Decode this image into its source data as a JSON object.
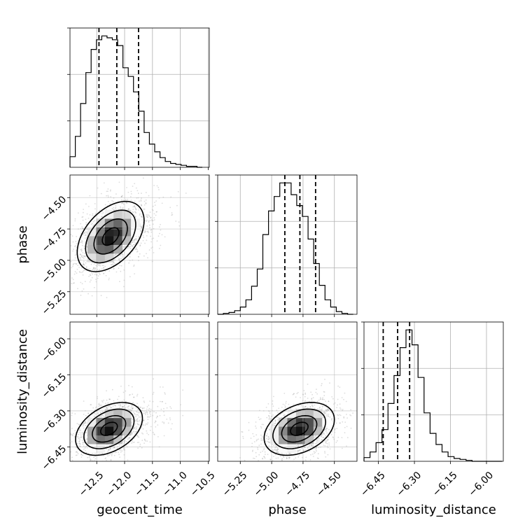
{
  "figure": {
    "type": "corner plot"
  },
  "chart_data": {
    "type": "corner",
    "parameters": [
      "geocent_time",
      "phase",
      "luminosity_distance"
    ],
    "axes": {
      "geocent_time": {
        "label": "geocent_time",
        "range": [
          -12.98,
          -10.48
        ],
        "ticks": [
          -12.5,
          -12.0,
          -11.5,
          -11.0,
          -10.5
        ],
        "tick_labels": [
          "−12.5",
          "−12.0",
          "−11.5",
          "−11.0",
          "−10.5"
        ]
      },
      "phase": {
        "label": "phase",
        "range": [
          -5.43,
          -4.32
        ],
        "ticks": [
          -5.25,
          -5.0,
          -4.75,
          -4.5
        ],
        "tick_labels": [
          "−5.25",
          "−5.00",
          "−4.75",
          "−4.50"
        ]
      },
      "luminosity_distance": {
        "label": "luminosity_distance",
        "range": [
          -6.51,
          -5.93
        ],
        "ticks": [
          -6.45,
          -6.3,
          -6.15,
          -6.0
        ],
        "tick_labels": [
          "−6.45",
          "−6.30",
          "−6.15",
          "−6.00"
        ]
      }
    },
    "histograms": [
      {
        "parameter": "geocent_time",
        "bins": [
          -12.98,
          -12.885,
          -12.79,
          -12.695,
          -12.6,
          -12.505,
          -12.41,
          -12.315,
          -12.22,
          -12.125,
          -12.03,
          -11.935,
          -11.84,
          -11.745,
          -11.65,
          -11.555,
          -11.46,
          -11.365,
          -11.27,
          -11.175,
          -11.08,
          -10.985,
          -10.89,
          -10.795,
          -10.7,
          -10.605
        ],
        "counts": [
          0.11,
          0.32,
          0.66,
          0.98,
          1.22,
          1.32,
          1.36,
          1.34,
          1.32,
          1.26,
          1.03,
          0.94,
          0.78,
          0.58,
          0.36,
          0.24,
          0.16,
          0.1,
          0.06,
          0.04,
          0.03,
          0.02,
          0.01,
          0.01,
          0.0
        ],
        "quantile_lines": [
          -12.46,
          -12.14,
          -11.75
        ]
      },
      {
        "parameter": "phase",
        "bins": [
          -5.43,
          -5.385,
          -5.34,
          -5.295,
          -5.25,
          -5.205,
          -5.16,
          -5.115,
          -5.07,
          -5.025,
          -4.98,
          -4.935,
          -4.89,
          -4.845,
          -4.8,
          -4.755,
          -4.71,
          -4.665,
          -4.62,
          -4.575,
          -4.53,
          -4.485,
          -4.44,
          -4.395,
          -4.35
        ],
        "counts": [
          0.0,
          0.01,
          0.02,
          0.04,
          0.08,
          0.16,
          0.31,
          0.5,
          0.88,
          1.14,
          1.3,
          1.45,
          1.45,
          1.32,
          1.2,
          1.08,
          0.83,
          0.56,
          0.32,
          0.16,
          0.08,
          0.03,
          0.01,
          0.0
        ],
        "quantile_lines": [
          -4.895,
          -4.775,
          -4.65
        ]
      },
      {
        "parameter": "luminosity_distance",
        "bins": [
          -6.51,
          -6.485,
          -6.46,
          -6.435,
          -6.41,
          -6.385,
          -6.36,
          -6.335,
          -6.31,
          -6.285,
          -6.26,
          -6.235,
          -6.21,
          -6.185,
          -6.16,
          -6.135,
          -6.11,
          -6.085,
          -6.06,
          -6.035,
          -6.01,
          -5.985,
          -5.96,
          -5.935
        ],
        "counts": [
          0.04,
          0.1,
          0.2,
          0.34,
          0.62,
          0.92,
          1.22,
          1.41,
          1.25,
          0.9,
          0.52,
          0.3,
          0.18,
          0.1,
          0.05,
          0.03,
          0.02,
          0.01,
          0.0,
          0.0,
          0.0,
          0.0,
          0.0
        ],
        "quantile_lines": [
          -6.43,
          -6.37,
          -6.32
        ]
      }
    ],
    "pair_distributions": [
      {
        "x": "geocent_time",
        "y": "phase",
        "center": [
          -12.25,
          -4.81
        ],
        "sigma": [
          0.3,
          0.14
        ],
        "correlation": 0.45,
        "contour_levels_sigma": [
          0.5,
          1.0,
          1.5,
          2.0
        ]
      },
      {
        "x": "geocent_time",
        "y": "luminosity_distance",
        "center": [
          -12.28,
          -6.375
        ],
        "sigma": [
          0.3,
          0.055
        ],
        "correlation": 0.4,
        "contour_levels_sigma": [
          0.5,
          1.0,
          1.5,
          2.0
        ]
      },
      {
        "x": "phase",
        "y": "luminosity_distance",
        "center": [
          -4.78,
          -6.375
        ],
        "sigma": [
          0.14,
          0.055
        ],
        "correlation": 0.35,
        "contour_levels_sigma": [
          0.5,
          1.0,
          1.5,
          2.0
        ]
      }
    ],
    "grid": true
  }
}
